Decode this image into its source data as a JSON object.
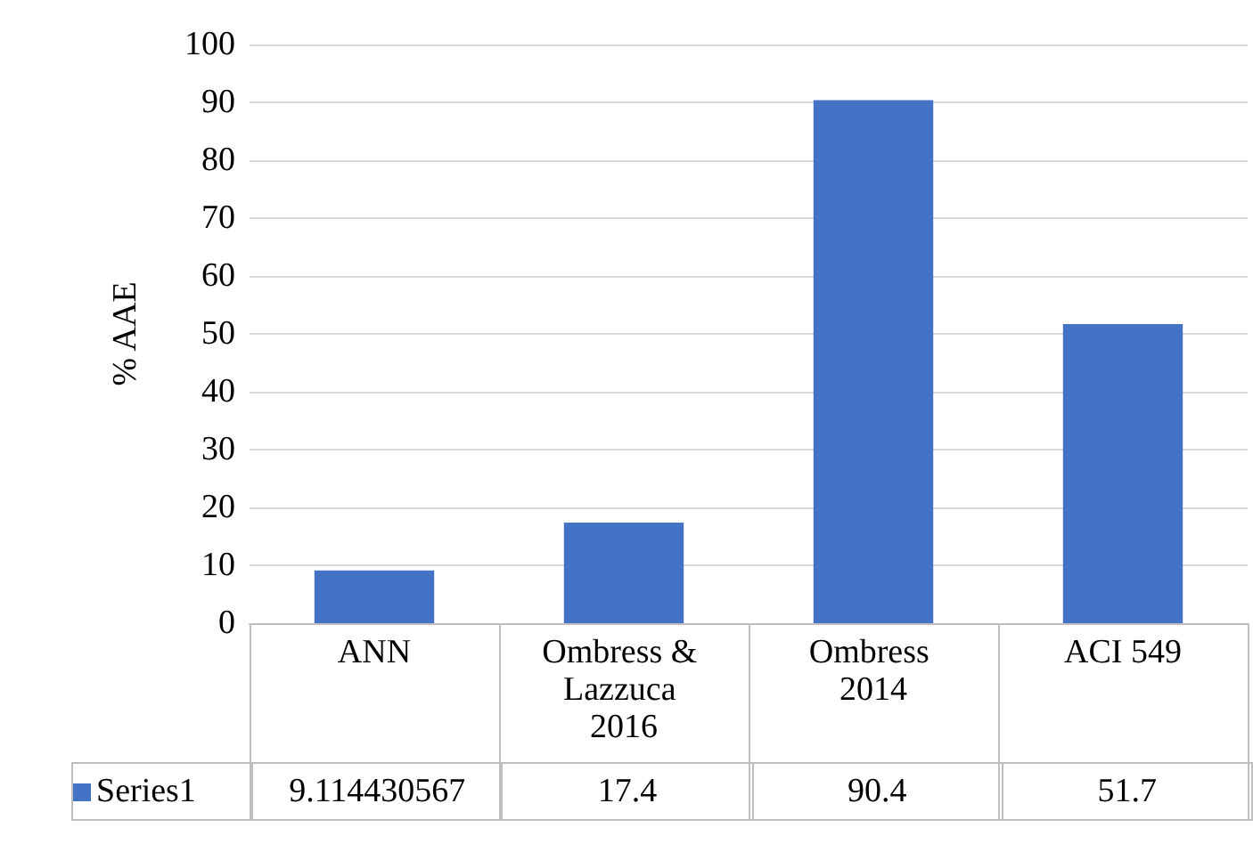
{
  "chart_data": {
    "type": "bar",
    "ylabel": "% AAE",
    "categories": [
      "ANN",
      "Ombress & Lazzuca 2016",
      "Ombress 2014",
      "ACI 549"
    ],
    "series": [
      {
        "name": "Series1",
        "color": "#4472c4",
        "values": [
          9.114430567,
          17.4,
          90.4,
          51.7
        ]
      }
    ],
    "ylim": [
      0,
      100
    ],
    "yticks": [
      0,
      10,
      20,
      30,
      40,
      50,
      60,
      70,
      80,
      90,
      100
    ],
    "grid": "y",
    "data_labels": true
  }
}
